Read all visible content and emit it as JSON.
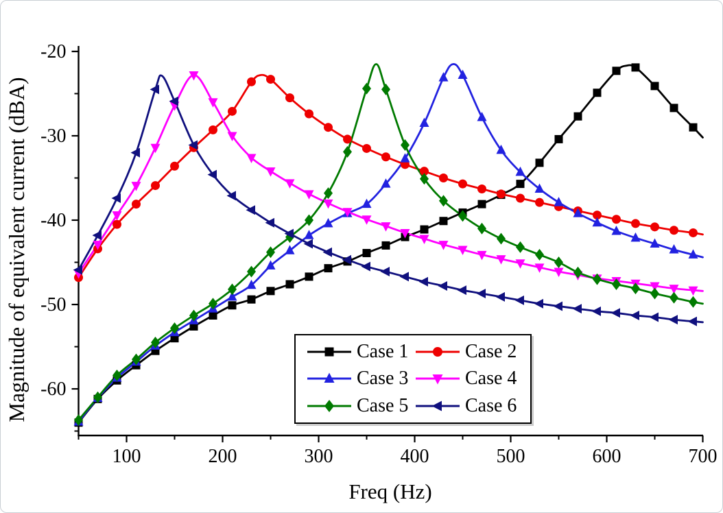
{
  "figure": {
    "background": "#ffffff",
    "border_color": "#c9ced4",
    "axis_color": "#000000"
  },
  "chart_data": {
    "type": "line",
    "title": "",
    "xlabel": "Freq (Hz)",
    "ylabel": "Magnitude of equivalent current (dBA)",
    "grid": false,
    "legend_position": "inside-bottom-center",
    "x_axis": {
      "min": 50,
      "max": 700,
      "major_ticks": [
        100,
        200,
        300,
        400,
        500,
        600,
        700
      ],
      "tick_labels": [
        "100",
        "200",
        "300",
        "400",
        "500",
        "600",
        "700"
      ],
      "minor_ticks": [
        50,
        150,
        250,
        350,
        450,
        550,
        650
      ]
    },
    "y_axis": {
      "min": -65.5,
      "max": -17.5,
      "major_ticks": [
        -20,
        -30,
        -40,
        -50,
        -60
      ],
      "tick_labels": [
        "-20",
        "-30",
        "-40",
        "-50",
        "-60"
      ],
      "minor_ticks": [
        -25,
        -35,
        -45,
        -55,
        -65
      ]
    },
    "marker_every_hz": 20,
    "series": [
      {
        "name": "Case 1",
        "color": "#000000",
        "marker": "square",
        "peak": [
          620,
          -21.7
        ],
        "points": [
          [
            50,
            -64.0
          ],
          [
            70,
            -61.2
          ],
          [
            90,
            -59.0
          ],
          [
            110,
            -57.2
          ],
          [
            130,
            -55.5
          ],
          [
            150,
            -54.0
          ],
          [
            170,
            -52.6
          ],
          [
            190,
            -51.3
          ],
          [
            210,
            -50.1
          ],
          [
            230,
            -49.4
          ],
          [
            250,
            -48.4
          ],
          [
            270,
            -47.6
          ],
          [
            290,
            -46.7
          ],
          [
            310,
            -45.7
          ],
          [
            330,
            -44.9
          ],
          [
            350,
            -43.9
          ],
          [
            370,
            -43.0
          ],
          [
            390,
            -42.0
          ],
          [
            410,
            -41.1
          ],
          [
            430,
            -40.1
          ],
          [
            450,
            -39.1
          ],
          [
            470,
            -38.1
          ],
          [
            490,
            -37.0
          ],
          [
            510,
            -35.7
          ],
          [
            530,
            -33.2
          ],
          [
            550,
            -30.4
          ],
          [
            570,
            -27.7
          ],
          [
            590,
            -24.9
          ],
          [
            610,
            -22.3
          ],
          [
            620,
            -21.7
          ],
          [
            630,
            -21.9
          ],
          [
            650,
            -24.1
          ],
          [
            670,
            -26.7
          ],
          [
            690,
            -29.0
          ],
          [
            700,
            -30.2
          ]
        ]
      },
      {
        "name": "Case 2",
        "color": "#ee0000",
        "marker": "circle",
        "peak": [
          240,
          -22.8
        ],
        "points": [
          [
            50,
            -46.8
          ],
          [
            70,
            -43.4
          ],
          [
            90,
            -40.5
          ],
          [
            110,
            -38.1
          ],
          [
            130,
            -35.9
          ],
          [
            150,
            -33.6
          ],
          [
            170,
            -31.4
          ],
          [
            190,
            -29.3
          ],
          [
            210,
            -27.1
          ],
          [
            230,
            -23.6
          ],
          [
            240,
            -22.8
          ],
          [
            250,
            -23.3
          ],
          [
            270,
            -25.5
          ],
          [
            290,
            -27.4
          ],
          [
            310,
            -29.0
          ],
          [
            330,
            -30.4
          ],
          [
            350,
            -31.5
          ],
          [
            370,
            -32.5
          ],
          [
            390,
            -33.4
          ],
          [
            410,
            -34.2
          ],
          [
            430,
            -35.0
          ],
          [
            450,
            -35.7
          ],
          [
            470,
            -36.3
          ],
          [
            490,
            -36.9
          ],
          [
            510,
            -37.4
          ],
          [
            530,
            -37.9
          ],
          [
            550,
            -38.4
          ],
          [
            570,
            -38.9
          ],
          [
            590,
            -39.4
          ],
          [
            610,
            -39.9
          ],
          [
            630,
            -40.4
          ],
          [
            650,
            -40.8
          ],
          [
            670,
            -41.2
          ],
          [
            690,
            -41.5
          ],
          [
            700,
            -41.7
          ]
        ]
      },
      {
        "name": "Case 3",
        "color": "#2222e0",
        "marker": "triangle-up",
        "peak": [
          440,
          -21.5
        ],
        "points": [
          [
            50,
            -63.9
          ],
          [
            70,
            -61.1
          ],
          [
            90,
            -58.7
          ],
          [
            110,
            -56.8
          ],
          [
            130,
            -54.9
          ],
          [
            150,
            -53.3
          ],
          [
            170,
            -51.9
          ],
          [
            190,
            -50.5
          ],
          [
            210,
            -49.1
          ],
          [
            230,
            -47.7
          ],
          [
            250,
            -45.4
          ],
          [
            270,
            -43.6
          ],
          [
            290,
            -41.8
          ],
          [
            310,
            -40.4
          ],
          [
            330,
            -39.2
          ],
          [
            350,
            -38.1
          ],
          [
            370,
            -35.7
          ],
          [
            390,
            -32.7
          ],
          [
            410,
            -28.5
          ],
          [
            430,
            -23.1
          ],
          [
            440,
            -21.5
          ],
          [
            450,
            -22.8
          ],
          [
            470,
            -27.8
          ],
          [
            490,
            -31.7
          ],
          [
            510,
            -34.3
          ],
          [
            530,
            -36.3
          ],
          [
            550,
            -37.9
          ],
          [
            570,
            -39.2
          ],
          [
            590,
            -40.3
          ],
          [
            610,
            -41.3
          ],
          [
            630,
            -42.1
          ],
          [
            650,
            -42.8
          ],
          [
            670,
            -43.5
          ],
          [
            690,
            -44.1
          ],
          [
            700,
            -44.4
          ]
        ]
      },
      {
        "name": "Case 4",
        "color": "#ff00ff",
        "marker": "triangle-down",
        "peak": [
          170,
          -22.8
        ],
        "points": [
          [
            50,
            -46.3
          ],
          [
            70,
            -42.9
          ],
          [
            90,
            -39.4
          ],
          [
            110,
            -35.9
          ],
          [
            130,
            -31.4
          ],
          [
            150,
            -26.4
          ],
          [
            170,
            -22.8
          ],
          [
            190,
            -26.0
          ],
          [
            210,
            -30.0
          ],
          [
            230,
            -32.6
          ],
          [
            250,
            -34.2
          ],
          [
            270,
            -35.6
          ],
          [
            290,
            -36.9
          ],
          [
            310,
            -38.0
          ],
          [
            330,
            -39.0
          ],
          [
            350,
            -39.9
          ],
          [
            370,
            -40.7
          ],
          [
            390,
            -41.5
          ],
          [
            410,
            -42.2
          ],
          [
            430,
            -42.9
          ],
          [
            450,
            -43.5
          ],
          [
            470,
            -44.1
          ],
          [
            490,
            -44.6
          ],
          [
            510,
            -45.1
          ],
          [
            530,
            -45.6
          ],
          [
            550,
            -46.1
          ],
          [
            570,
            -46.5
          ],
          [
            590,
            -46.9
          ],
          [
            610,
            -47.2
          ],
          [
            630,
            -47.5
          ],
          [
            650,
            -47.8
          ],
          [
            670,
            -48.1
          ],
          [
            690,
            -48.3
          ],
          [
            700,
            -48.4
          ]
        ]
      },
      {
        "name": "Case 5",
        "color": "#007a00",
        "marker": "diamond",
        "peak": [
          360,
          -21.5
        ],
        "points": [
          [
            50,
            -63.7
          ],
          [
            70,
            -61.0
          ],
          [
            90,
            -58.4
          ],
          [
            110,
            -56.5
          ],
          [
            130,
            -54.5
          ],
          [
            150,
            -52.8
          ],
          [
            170,
            -51.3
          ],
          [
            190,
            -49.9
          ],
          [
            210,
            -48.2
          ],
          [
            230,
            -46.1
          ],
          [
            250,
            -43.8
          ],
          [
            270,
            -42.0
          ],
          [
            290,
            -40.0
          ],
          [
            310,
            -36.8
          ],
          [
            330,
            -31.9
          ],
          [
            350,
            -24.4
          ],
          [
            360,
            -21.5
          ],
          [
            370,
            -24.5
          ],
          [
            390,
            -31.1
          ],
          [
            410,
            -35.1
          ],
          [
            430,
            -37.7
          ],
          [
            450,
            -39.5
          ],
          [
            470,
            -41.0
          ],
          [
            490,
            -42.2
          ],
          [
            510,
            -43.2
          ],
          [
            530,
            -44.1
          ],
          [
            550,
            -45.0
          ],
          [
            570,
            -46.2
          ],
          [
            590,
            -47.0
          ],
          [
            610,
            -47.6
          ],
          [
            630,
            -48.1
          ],
          [
            650,
            -48.7
          ],
          [
            670,
            -49.2
          ],
          [
            690,
            -49.7
          ],
          [
            700,
            -49.9
          ]
        ]
      },
      {
        "name": "Case 6",
        "color": "#10107e",
        "marker": "triangle-left",
        "peak": [
          137,
          -22.9
        ],
        "points": [
          [
            50,
            -45.9
          ],
          [
            70,
            -41.8
          ],
          [
            90,
            -37.4
          ],
          [
            110,
            -32.0
          ],
          [
            130,
            -24.5
          ],
          [
            137,
            -22.9
          ],
          [
            150,
            -25.9
          ],
          [
            170,
            -31.1
          ],
          [
            190,
            -34.6
          ],
          [
            210,
            -37.1
          ],
          [
            230,
            -38.8
          ],
          [
            250,
            -40.3
          ],
          [
            270,
            -41.6
          ],
          [
            290,
            -42.8
          ],
          [
            310,
            -43.8
          ],
          [
            330,
            -44.7
          ],
          [
            350,
            -45.5
          ],
          [
            370,
            -46.1
          ],
          [
            390,
            -46.7
          ],
          [
            410,
            -47.3
          ],
          [
            430,
            -47.8
          ],
          [
            450,
            -48.3
          ],
          [
            470,
            -48.7
          ],
          [
            490,
            -49.1
          ],
          [
            510,
            -49.5
          ],
          [
            530,
            -49.9
          ],
          [
            550,
            -50.2
          ],
          [
            570,
            -50.5
          ],
          [
            590,
            -50.8
          ],
          [
            610,
            -51.0
          ],
          [
            630,
            -51.3
          ],
          [
            650,
            -51.5
          ],
          [
            670,
            -51.8
          ],
          [
            690,
            -52.0
          ],
          [
            700,
            -52.1
          ]
        ]
      }
    ]
  }
}
